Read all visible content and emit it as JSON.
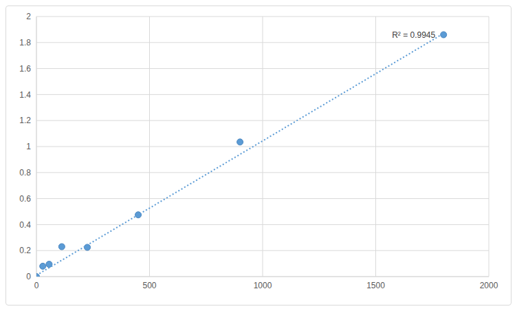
{
  "chart_data": {
    "type": "scatter",
    "xlim": [
      0,
      2000
    ],
    "xticks": [
      0,
      500,
      1000,
      1500,
      2000
    ],
    "ylim": [
      0,
      2
    ],
    "yticks": [
      0,
      0.2,
      0.4,
      0.6,
      0.8,
      1,
      1.2,
      1.4,
      1.6,
      1.8,
      2
    ],
    "grid": true,
    "annotation": "R² = 0.9945",
    "series": [
      {
        "type": "scatter",
        "marker": "circle",
        "color": "#5b9bd5",
        "x": [
          0,
          28,
          56,
          112,
          225,
          450,
          900,
          1800
        ],
        "values": [
          0,
          0.08,
          0.095,
          0.23,
          0.225,
          0.475,
          1.035,
          1.86
        ]
      },
      {
        "type": "line",
        "line_style": "dotted",
        "color": "#5b9bd5",
        "x": [
          0,
          1800
        ],
        "values": [
          0.01,
          1.87
        ]
      }
    ]
  }
}
